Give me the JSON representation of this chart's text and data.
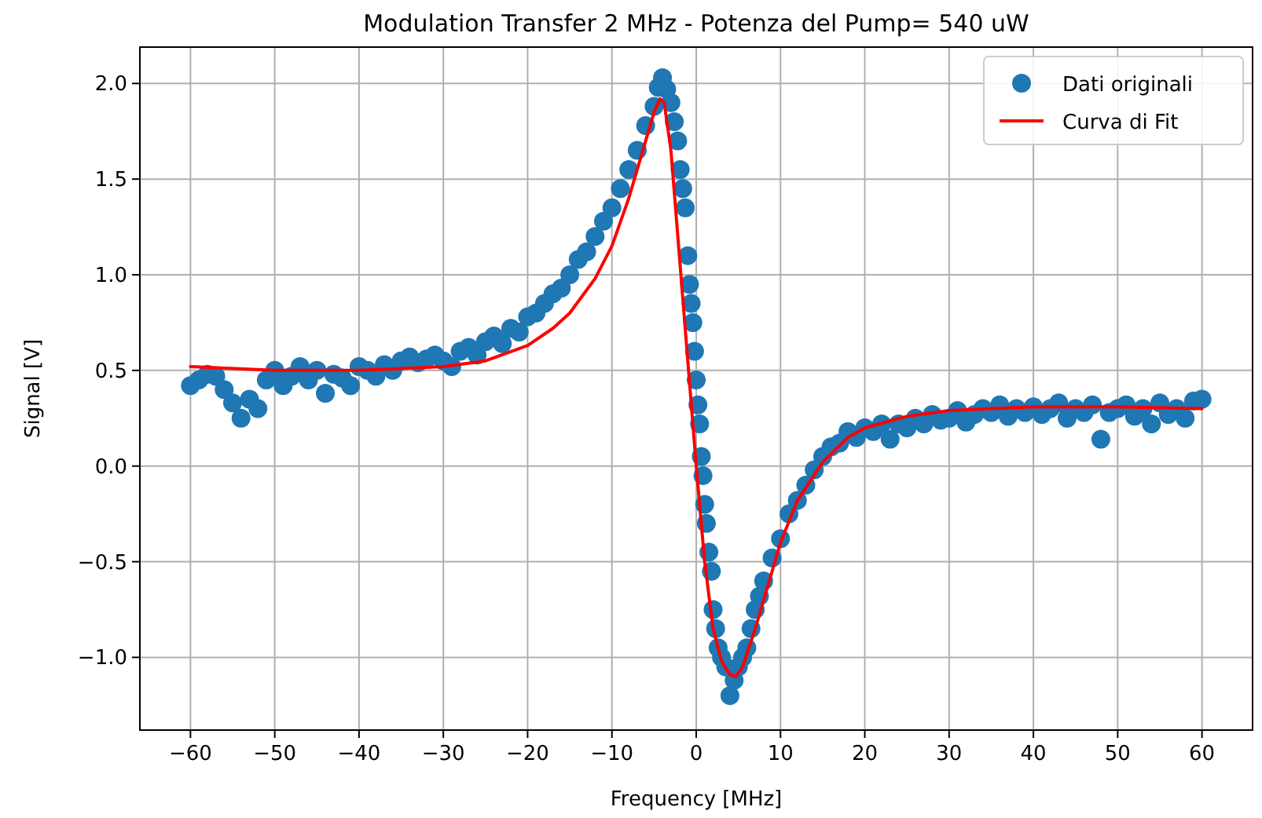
{
  "chart_data": {
    "type": "scatter",
    "title": "Modulation Transfer 2 MHz - Potenza del Pump= 540 uW",
    "xlabel": "Frequency [MHz]",
    "ylabel": "Signal [V]",
    "xlim": [
      -66,
      66
    ],
    "ylim": [
      -1.38,
      2.19
    ],
    "xticks": [
      {
        "value": -60,
        "label": "−60"
      },
      {
        "value": -50,
        "label": "−50"
      },
      {
        "value": -40,
        "label": "−40"
      },
      {
        "value": -30,
        "label": "−30"
      },
      {
        "value": -20,
        "label": "−20"
      },
      {
        "value": -10,
        "label": "−10"
      },
      0,
      10,
      20,
      30,
      40,
      50,
      60
    ],
    "yticks": [
      {
        "value": -1,
        "label": "−1.0"
      },
      {
        "value": -0.5,
        "label": "−0.5"
      },
      {
        "value": 0,
        "label": "0.0"
      },
      {
        "value": 0.5,
        "label": "0.5"
      },
      {
        "value": 1,
        "label": "1.0"
      },
      {
        "value": 1.5,
        "label": "1.5"
      },
      {
        "value": 2,
        "label": "2.0"
      }
    ],
    "grid": true,
    "legend": "top right",
    "series": [
      {
        "name": "Dati originali",
        "marker": "circle",
        "color": "#1f77b4",
        "x": [
          -60,
          -59,
          -58,
          -57,
          -56,
          -55,
          -54,
          -53,
          -52,
          -51,
          -50,
          -49,
          -48,
          -47,
          -46,
          -45,
          -44,
          -43,
          -42,
          -41,
          -40,
          -39,
          -38,
          -37,
          -36,
          -35,
          -34,
          -33,
          -32,
          -31,
          -30,
          -29,
          -28,
          -27,
          -26,
          -25,
          -24,
          -23,
          -22,
          -21,
          -20,
          -19,
          -18,
          -17,
          -16,
          -15,
          -14,
          -13,
          -12,
          -11,
          -10,
          -9,
          -8,
          -7,
          -6,
          -5,
          -4.5,
          -4,
          -3.5,
          -3,
          -2.6,
          -2.2,
          -1.9,
          -1.6,
          -1.3,
          -1,
          -0.8,
          -0.6,
          -0.4,
          -0.2,
          0,
          0.2,
          0.4,
          0.6,
          0.8,
          1,
          1.2,
          1.5,
          1.8,
          2,
          2.3,
          2.6,
          3,
          3.5,
          4,
          4.5,
          5,
          5.5,
          6,
          6.5,
          7,
          7.5,
          8,
          9,
          10,
          11,
          12,
          13,
          14,
          15,
          16,
          17,
          18,
          19,
          20,
          21,
          22,
          23,
          24,
          25,
          26,
          27,
          28,
          29,
          30,
          31,
          32,
          33,
          34,
          35,
          36,
          37,
          38,
          39,
          40,
          41,
          42,
          43,
          44,
          45,
          46,
          47,
          48,
          49,
          50,
          51,
          52,
          53,
          54,
          55,
          56,
          57,
          58,
          59,
          60
        ],
        "values": [
          0.42,
          0.45,
          0.48,
          0.47,
          0.4,
          0.33,
          0.25,
          0.35,
          0.3,
          0.45,
          0.5,
          0.42,
          0.47,
          0.52,
          0.45,
          0.5,
          0.38,
          0.48,
          0.46,
          0.42,
          0.52,
          0.5,
          0.47,
          0.53,
          0.5,
          0.55,
          0.57,
          0.54,
          0.56,
          0.58,
          0.55,
          0.52,
          0.6,
          0.62,
          0.58,
          0.65,
          0.68,
          0.64,
          0.72,
          0.7,
          0.78,
          0.8,
          0.85,
          0.9,
          0.93,
          1.0,
          1.08,
          1.12,
          1.2,
          1.28,
          1.35,
          1.45,
          1.55,
          1.65,
          1.78,
          1.88,
          1.98,
          2.03,
          1.97,
          1.9,
          1.8,
          1.7,
          1.55,
          1.45,
          1.35,
          1.1,
          0.95,
          0.85,
          0.75,
          0.6,
          0.45,
          0.32,
          0.22,
          0.05,
          -0.05,
          -0.2,
          -0.3,
          -0.45,
          -0.55,
          -0.75,
          -0.85,
          -0.95,
          -1.0,
          -1.05,
          -1.2,
          -1.12,
          -1.05,
          -1.0,
          -0.95,
          -0.85,
          -0.75,
          -0.68,
          -0.6,
          -0.48,
          -0.38,
          -0.25,
          -0.18,
          -0.1,
          -0.02,
          0.05,
          0.1,
          0.12,
          0.18,
          0.15,
          0.2,
          0.18,
          0.22,
          0.14,
          0.22,
          0.2,
          0.25,
          0.22,
          0.27,
          0.24,
          0.25,
          0.29,
          0.23,
          0.27,
          0.3,
          0.28,
          0.32,
          0.26,
          0.3,
          0.28,
          0.31,
          0.27,
          0.3,
          0.33,
          0.25,
          0.3,
          0.28,
          0.32,
          0.14,
          0.28,
          0.3,
          0.32,
          0.26,
          0.3,
          0.22,
          0.33,
          0.27,
          0.3,
          0.25,
          0.34,
          0.35
        ]
      },
      {
        "name": "Curva di Fit",
        "type": "line",
        "line_style": "solid",
        "color": "#ff0000",
        "x": [
          -60,
          -50,
          -40,
          -30,
          -25,
          -20,
          -17,
          -15,
          -12,
          -10,
          -8,
          -6,
          -5,
          -4.3,
          -3.8,
          -3,
          -2,
          -1,
          0,
          1,
          2,
          3,
          4,
          4.7,
          5.5,
          7,
          8,
          10,
          12,
          15,
          18,
          20,
          25,
          30,
          40,
          50,
          60
        ],
        "values": [
          0.52,
          0.5,
          0.5,
          0.52,
          0.55,
          0.63,
          0.72,
          0.8,
          0.98,
          1.15,
          1.4,
          1.7,
          1.85,
          1.92,
          1.9,
          1.65,
          1.1,
          0.55,
          0.0,
          -0.5,
          -0.85,
          -1.02,
          -1.09,
          -1.1,
          -1.05,
          -0.85,
          -0.7,
          -0.4,
          -0.18,
          0.02,
          0.15,
          0.2,
          0.26,
          0.29,
          0.31,
          0.31,
          0.3
        ]
      }
    ]
  }
}
